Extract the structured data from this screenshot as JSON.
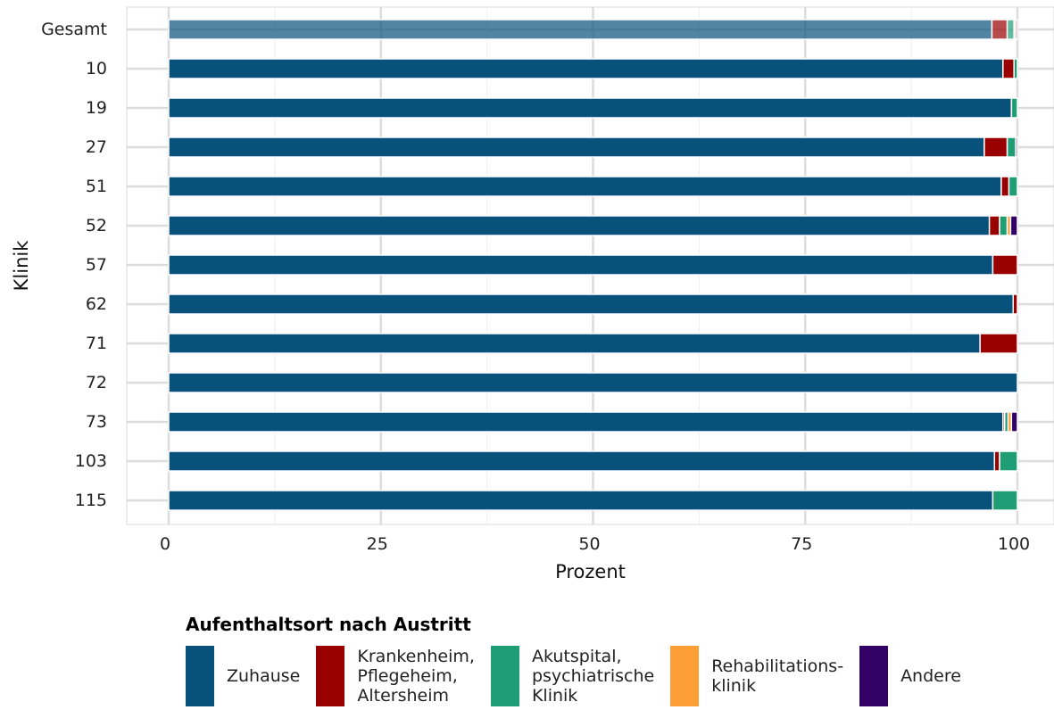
{
  "chart_data": {
    "type": "bar",
    "orientation": "horizontal",
    "stacked": true,
    "xlabel": "Prozent",
    "ylabel": "Klinik",
    "xlim": [
      0,
      100
    ],
    "xticks": [
      "0",
      "25",
      "50",
      "75",
      "100"
    ],
    "grid": true,
    "legend_position": "bottom",
    "legend_title": "Aufenthaltsort nach Austritt",
    "categories": [
      "Gesamt",
      "10",
      "19",
      "27",
      "51",
      "52",
      "57",
      "62",
      "71",
      "72",
      "73",
      "103",
      "115"
    ],
    "series": [
      {
        "name": "Zuhause",
        "color": "#08517a",
        "values": [
          97.0,
          98.3,
          99.3,
          96.1,
          98.1,
          96.7,
          97.1,
          99.5,
          95.6,
          100.0,
          98.3,
          97.3,
          97.1
        ]
      },
      {
        "name": "Krankenheim,\nPflegeheim,\nAltersheim",
        "color": "#990000",
        "values": [
          1.8,
          1.3,
          0.0,
          2.7,
          0.9,
          1.2,
          2.9,
          0.5,
          4.4,
          0.0,
          0.2,
          0.6,
          0.0
        ]
      },
      {
        "name": "Akutspital,\npsychiatrische\nKlinik",
        "color": "#1f9e76",
        "values": [
          0.8,
          0.4,
          0.7,
          1.0,
          1.0,
          0.9,
          0.0,
          0.0,
          0.0,
          0.0,
          0.4,
          2.1,
          2.9
        ]
      },
      {
        "name": "Rehabilitations-\nklinik",
        "color": "#fd9e36",
        "values": [
          0.2,
          0.0,
          0.0,
          0.0,
          0.0,
          0.4,
          0.0,
          0.0,
          0.0,
          0.0,
          0.4,
          0.0,
          0.0
        ]
      },
      {
        "name": "Andere",
        "color": "#330066",
        "values": [
          0.2,
          0.0,
          0.0,
          0.2,
          0.0,
          0.8,
          0.0,
          0.0,
          0.0,
          0.0,
          0.7,
          0.0,
          0.0
        ]
      }
    ],
    "highlight_category": "Gesamt"
  }
}
